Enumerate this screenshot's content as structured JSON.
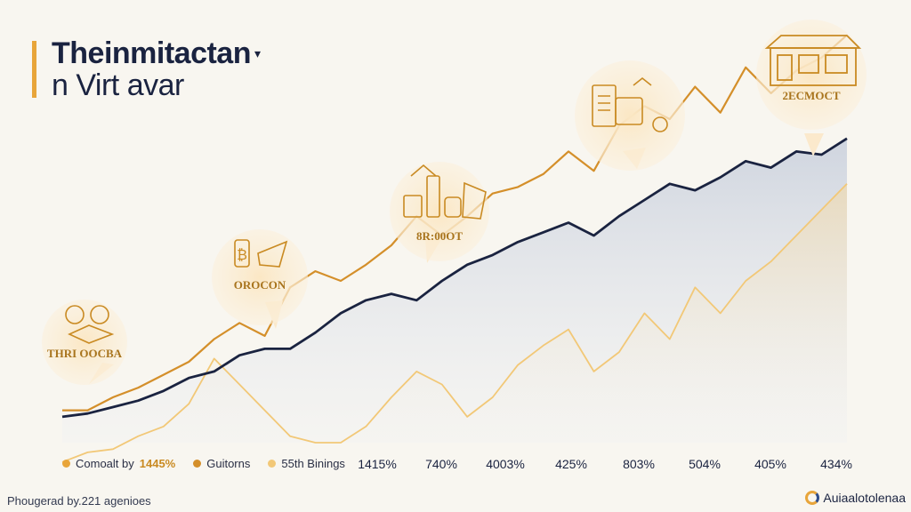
{
  "title": {
    "line1": "Theinmitactan",
    "line2": "n Virt avar",
    "mark": "▾"
  },
  "chart_data": {
    "type": "area",
    "x_tick_labels": [
      "1415%",
      "740%",
      "4003%",
      "425%",
      "803%",
      "504%",
      "405%",
      "434%"
    ],
    "legend": [
      {
        "label": "Comoalt by",
        "value": "1445%",
        "color": "#e8a53a"
      },
      {
        "label": "Guitorns",
        "value": "",
        "color": "#d48f2a"
      },
      {
        "label": "55th Binings",
        "value": "",
        "color": "#f2c877"
      }
    ],
    "series": [
      {
        "color": "#1a2340",
        "values": [
          8,
          9,
          11,
          13,
          16,
          20,
          22,
          27,
          29,
          29,
          34,
          40,
          44,
          46,
          44,
          50,
          55,
          58,
          62,
          65,
          68,
          64,
          70,
          75,
          80,
          78,
          82,
          87,
          85,
          90,
          89,
          94
        ]
      },
      {
        "color": "#d48f2a",
        "values": [
          10,
          10,
          14,
          17,
          21,
          25,
          32,
          37,
          33,
          48,
          53,
          50,
          55,
          61,
          70,
          64,
          70,
          77,
          79,
          83,
          90,
          84,
          98,
          104,
          100,
          110,
          102,
          116,
          108,
          115,
          119,
          126
        ]
      },
      {
        "color": "#f2c877",
        "values": [
          -6,
          -3,
          -2,
          2,
          5,
          12,
          26,
          18,
          10,
          2,
          0,
          0,
          5,
          14,
          22,
          18,
          8,
          14,
          24,
          30,
          35,
          22,
          28,
          40,
          32,
          48,
          40,
          50,
          56,
          64,
          72,
          80
        ]
      }
    ],
    "grid": false,
    "legend_position": "bottom-left"
  },
  "callouts": [
    {
      "label": "THRI OOCBA",
      "icon": "coin-icon"
    },
    {
      "label": "OROCON",
      "icon": "bitcoin-icon"
    },
    {
      "label": "8R:00OT",
      "icon": "products-icon"
    },
    {
      "label": "",
      "icon": "documents-icon"
    },
    {
      "label": "2ECMOCT",
      "icon": "storefront-icon"
    }
  ],
  "footer": {
    "left": "Phougerad by.221 agenioes",
    "right": "Auiaalotolenaa"
  }
}
